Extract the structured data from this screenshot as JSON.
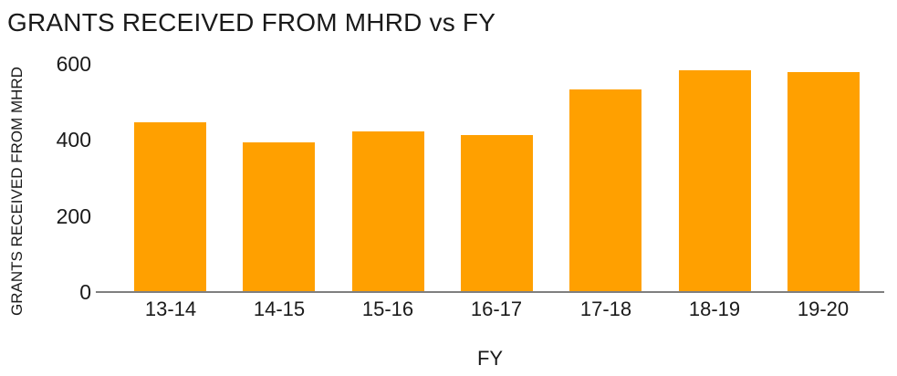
{
  "chart_data": {
    "type": "bar",
    "title": "GRANTS RECEIVED FROM MHRD vs FY",
    "xlabel": "FY",
    "ylabel": "GRANTS RECEIVED FROM MHRD",
    "categories": [
      "13-14",
      "14-15",
      "15-16",
      "16-17",
      "17-18",
      "18-19",
      "19-20"
    ],
    "values": [
      445,
      390,
      420,
      410,
      530,
      580,
      575
    ],
    "ylim": [
      0,
      600
    ],
    "y_ticks": [
      0,
      200,
      400,
      600
    ],
    "grid": false,
    "legend": "none",
    "bar_color": "#FFA000",
    "axis_line_color": "#7F7F7F",
    "text_color": "#1A1A1A",
    "background_color": "#FFFFFF"
  }
}
